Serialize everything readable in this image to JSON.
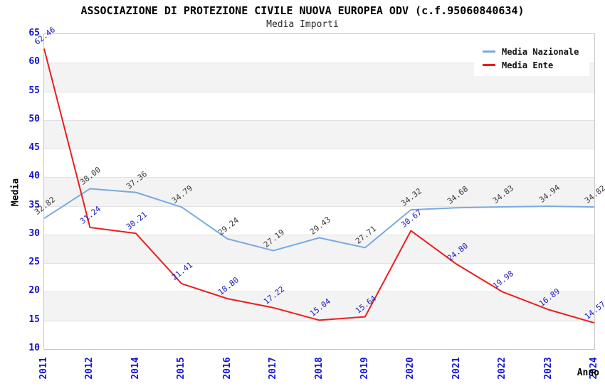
{
  "title": "ASSOCIAZIONE DI PROTEZIONE CIVILE NUOVA EUROPEA ODV (c.f.95060840634)",
  "subtitle": "Media Importi",
  "chart_data": {
    "type": "line",
    "title": "ASSOCIAZIONE DI PROTEZIONE CIVILE NUOVA EUROPEA ODV (c.f.95060840634)",
    "subtitle": "Media Importi",
    "xlabel": "Anno",
    "ylabel": "Media",
    "ylim": [
      10,
      65
    ],
    "ytick_step": 5,
    "yticks": [
      65,
      60,
      55,
      50,
      45,
      40,
      35,
      30,
      25,
      20,
      15,
      10
    ],
    "categories": [
      "2011",
      "2012",
      "2014",
      "2015",
      "2016",
      "2017",
      "2018",
      "2019",
      "2020",
      "2021",
      "2022",
      "2023",
      "2024"
    ],
    "series": [
      {
        "name": "Media Nazionale",
        "line_color": "#78aae1",
        "label_color": "#3a3a3a",
        "values": [
          32.82,
          38.0,
          37.36,
          34.79,
          29.24,
          27.19,
          29.43,
          27.71,
          34.32,
          34.68,
          34.83,
          34.94,
          34.82
        ]
      },
      {
        "name": "Media Ente",
        "line_color": "#eb1e1e",
        "label_color": "#2020bb",
        "values": [
          62.46,
          31.24,
          30.21,
          21.41,
          18.8,
          17.22,
          15.04,
          15.64,
          30.67,
          24.8,
          19.98,
          16.89,
          14.57
        ]
      }
    ],
    "legend_position": "top-right",
    "grid": {
      "bands": true,
      "band_light": "#ffffff",
      "band_dark": "#f3f3f3",
      "line_color": "#e2e2e2",
      "frame_color": "#c8c8c8"
    },
    "colors": {
      "axis_tick_text": "#1515ce",
      "title_text": "#000000"
    }
  }
}
